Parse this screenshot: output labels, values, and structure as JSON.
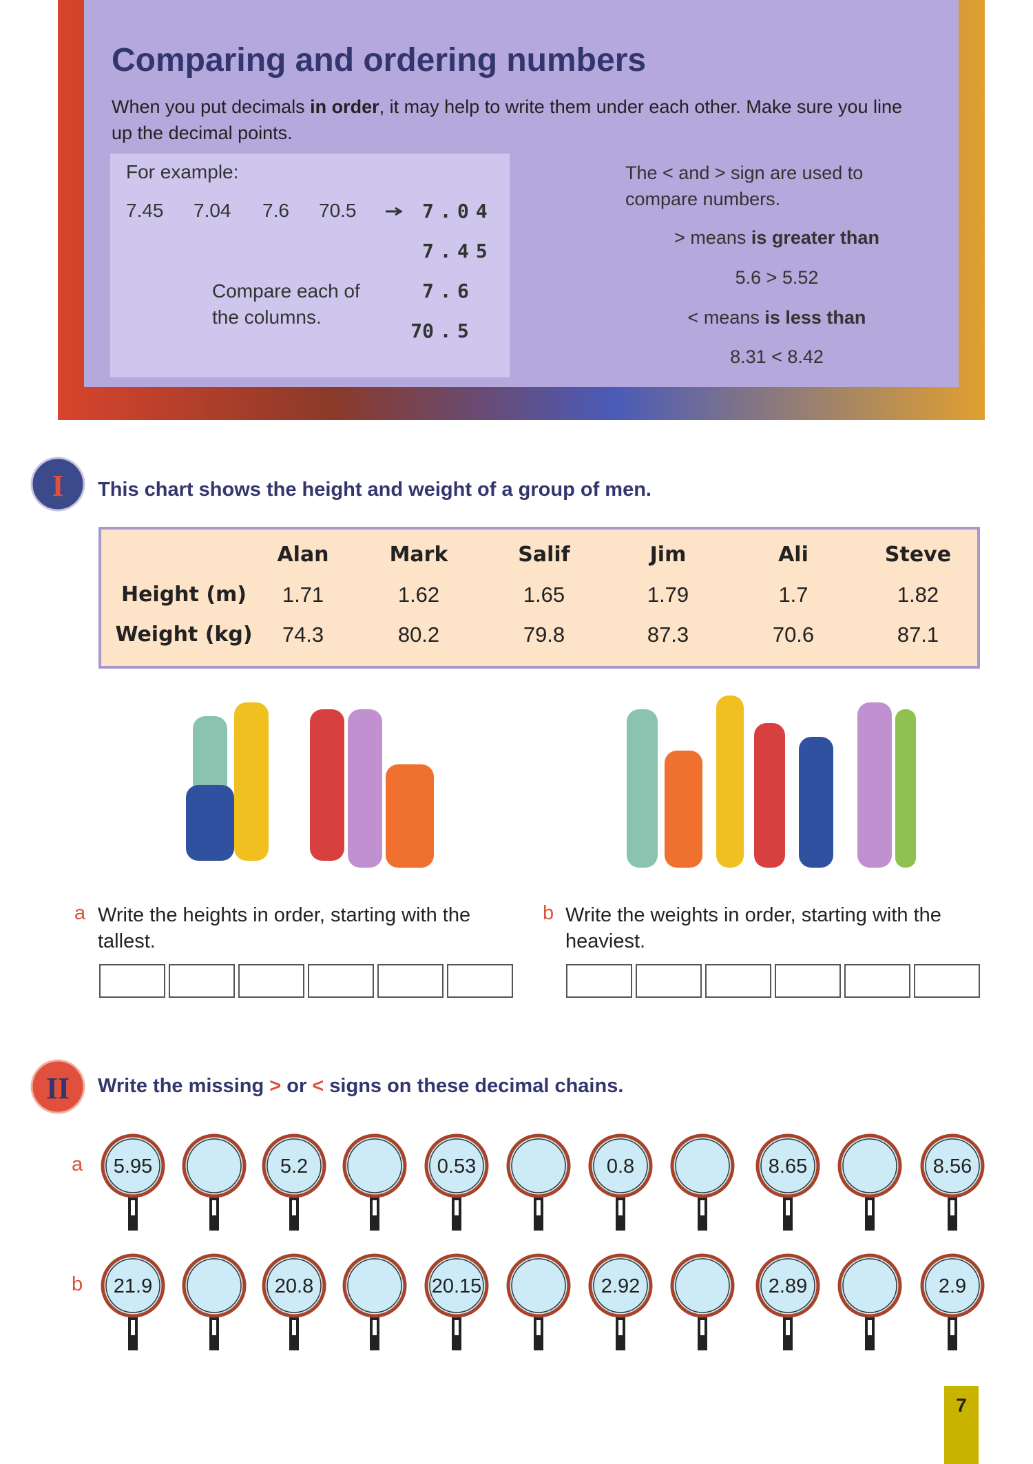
{
  "header": {
    "title": "Comparing and ordering numbers",
    "intro": [
      "When you put decimals ",
      "in order",
      ", it may help to write them under each other. Make sure you line up the decimal points."
    ],
    "example": {
      "label": "For example:",
      "numbers": [
        "7.45",
        "7.04",
        "7.6",
        "70.5"
      ],
      "ordered": [
        "7.04",
        "7.45",
        "7.6",
        "70.5"
      ],
      "note": "Compare each of the columns."
    },
    "signs": {
      "intro": "The < and > sign are used to compare numbers.",
      "greater": {
        "prefix": "> means ",
        "bold": "is greater than",
        "example": "5.6 > 5.52"
      },
      "less": {
        "prefix": "< means ",
        "bold": "is less than",
        "example": "8.31 < 8.42"
      }
    }
  },
  "section1": {
    "number": "I",
    "instruction": "This chart shows the height and weight of a group of men.",
    "table": {
      "columns": [
        "Alan",
        "Mark",
        "Salif",
        "Jim",
        "Ali",
        "Steve"
      ],
      "rows": [
        {
          "label": "Height (m)",
          "values": [
            1.71,
            1.62,
            1.65,
            1.79,
            1.7,
            1.82
          ]
        },
        {
          "label": "Weight (kg)",
          "values": [
            74.3,
            80.2,
            79.8,
            87.3,
            70.6,
            87.1
          ]
        }
      ]
    },
    "questions": [
      {
        "letter": "a",
        "text": "Write the heights in order, starting with the tallest."
      },
      {
        "letter": "b",
        "text": "Write the weights in order, starting with the heaviest."
      }
    ]
  },
  "section2": {
    "number": "II",
    "instruction": [
      "Write the missing ",
      ">",
      " or ",
      "<",
      " signs on these decimal chains."
    ],
    "chains": [
      {
        "letter": "a",
        "values": [
          5.95,
          5.2,
          0.53,
          0.8,
          8.65,
          8.56
        ]
      },
      {
        "letter": "b",
        "values": [
          21.9,
          20.8,
          20.15,
          2.92,
          2.89,
          2.9
        ]
      }
    ]
  },
  "page_number": 7
}
